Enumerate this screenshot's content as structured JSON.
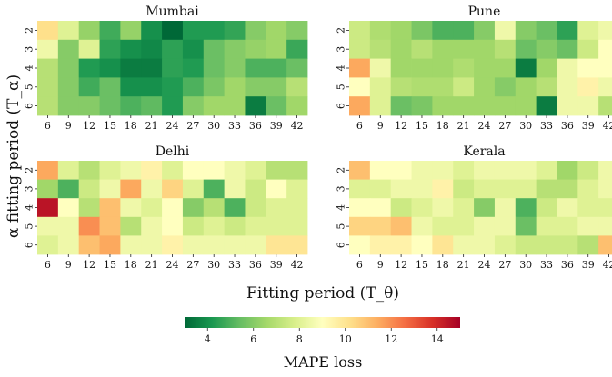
{
  "figure": {
    "xlabel": "Fitting period (T_θ)",
    "ylabel": "α fitting period (T_α)",
    "colorbar_label": "MAPE loss",
    "colorbar_ticks": [
      4,
      6,
      8,
      10,
      12,
      14
    ],
    "colormap": [
      "#006837",
      "#1a9850",
      "#66bd63",
      "#a6d96a",
      "#d9ef8b",
      "#ffffbf",
      "#fee08b",
      "#fdae61",
      "#f46d43",
      "#d73027",
      "#a50026"
    ]
  },
  "chart_data": [
    {
      "type": "heatmap",
      "title": "Mumbai",
      "x": [
        6,
        9,
        12,
        15,
        18,
        21,
        24,
        27,
        30,
        33,
        36,
        39,
        42
      ],
      "y": [
        2,
        3,
        4,
        5,
        6
      ],
      "vmin": 3,
      "vmax": 15,
      "values": [
        [
          10.2,
          8.0,
          6.3,
          4.8,
          6.3,
          4.0,
          3.0,
          4.3,
          4.3,
          4.6,
          6.0,
          6.5,
          6.0
        ],
        [
          8.5,
          6.0,
          8.0,
          4.5,
          4.0,
          3.8,
          4.5,
          4.0,
          5.5,
          6.0,
          6.3,
          6.5,
          4.7
        ],
        [
          7.0,
          6.0,
          4.3,
          4.0,
          3.5,
          3.5,
          4.5,
          4.3,
          5.5,
          6.0,
          5.0,
          5.0,
          5.5
        ],
        [
          7.0,
          6.0,
          4.8,
          5.5,
          4.0,
          4.0,
          4.3,
          5.0,
          5.8,
          6.5,
          6.0,
          6.0,
          7.0
        ],
        [
          7.0,
          6.0,
          6.0,
          5.5,
          5.0,
          5.3,
          4.3,
          6.0,
          6.5,
          6.5,
          3.5,
          5.5,
          6.5
        ]
      ]
    },
    {
      "type": "heatmap",
      "title": "Pune",
      "x": [
        6,
        9,
        12,
        15,
        18,
        21,
        24,
        27,
        30,
        33,
        36,
        39,
        42
      ],
      "y": [
        2,
        3,
        4,
        5,
        6
      ],
      "vmin": 3,
      "vmax": 15,
      "values": [
        [
          7.5,
          6.8,
          6.5,
          5.8,
          5.0,
          5.0,
          6.0,
          8.5,
          6.0,
          5.5,
          4.5,
          8.0,
          8.5
        ],
        [
          7.5,
          7.0,
          6.5,
          7.0,
          6.5,
          6.5,
          6.5,
          7.0,
          5.5,
          6.0,
          5.5,
          7.5,
          9.0
        ],
        [
          11.5,
          8.5,
          6.5,
          6.5,
          6.5,
          6.8,
          6.5,
          6.5,
          3.5,
          6.5,
          8.5,
          9.0,
          9.0
        ],
        [
          9.0,
          8.0,
          7.0,
          6.8,
          6.8,
          7.5,
          6.5,
          6.0,
          6.5,
          7.0,
          8.5,
          9.5,
          8.5
        ],
        [
          11.5,
          8.0,
          5.5,
          5.8,
          6.5,
          6.5,
          6.5,
          6.5,
          6.5,
          3.5,
          8.5,
          8.5,
          7.0
        ]
      ]
    },
    {
      "type": "heatmap",
      "title": "Delhi",
      "x": [
        6,
        9,
        12,
        15,
        18,
        21,
        24,
        27,
        30,
        33,
        36,
        39,
        42
      ],
      "y": [
        2,
        3,
        4,
        5,
        6
      ],
      "vmin": 3,
      "vmax": 15,
      "values": [
        [
          11.5,
          8.0,
          7.0,
          8.0,
          8.5,
          9.5,
          8.0,
          9.0,
          9.0,
          8.5,
          8.0,
          7.0,
          7.0
        ],
        [
          6.5,
          5.0,
          7.5,
          8.5,
          11.5,
          8.5,
          10.5,
          8.0,
          5.0,
          8.5,
          7.5,
          9.0,
          8.0
        ],
        [
          14.5,
          9.0,
          7.0,
          11.0,
          8.5,
          8.0,
          9.0,
          6.0,
          7.0,
          5.0,
          7.5,
          8.0,
          8.0
        ],
        [
          8.5,
          8.5,
          12.0,
          11.0,
          7.0,
          8.5,
          9.0,
          7.5,
          8.0,
          7.5,
          8.0,
          8.0,
          8.0
        ],
        [
          8.0,
          8.5,
          11.0,
          11.5,
          8.5,
          8.5,
          9.5,
          8.5,
          8.5,
          8.5,
          8.5,
          10.0,
          10.0
        ]
      ]
    },
    {
      "type": "heatmap",
      "title": "Kerala",
      "x": [
        6,
        9,
        12,
        15,
        18,
        21,
        24,
        27,
        30,
        33,
        36,
        39,
        42
      ],
      "y": [
        2,
        3,
        4,
        5,
        6
      ],
      "vmin": 3,
      "vmax": 15,
      "values": [
        [
          11.0,
          9.0,
          9.0,
          8.5,
          8.5,
          8.0,
          8.5,
          8.5,
          8.5,
          8.0,
          6.5,
          7.5,
          8.5
        ],
        [
          8.0,
          8.0,
          8.5,
          8.5,
          9.5,
          7.5,
          8.0,
          8.0,
          8.0,
          7.0,
          7.0,
          8.0,
          8.5
        ],
        [
          9.0,
          9.0,
          7.5,
          8.0,
          8.5,
          8.0,
          6.0,
          8.5,
          5.0,
          7.5,
          8.5,
          8.0,
          8.0
        ],
        [
          10.5,
          10.5,
          11.0,
          8.5,
          8.0,
          8.0,
          8.5,
          8.5,
          5.5,
          8.0,
          8.0,
          8.5,
          8.5
        ],
        [
          9.0,
          9.5,
          9.5,
          9.0,
          10.0,
          8.5,
          8.5,
          8.0,
          7.5,
          7.5,
          7.5,
          7.0,
          11.0
        ]
      ]
    }
  ]
}
